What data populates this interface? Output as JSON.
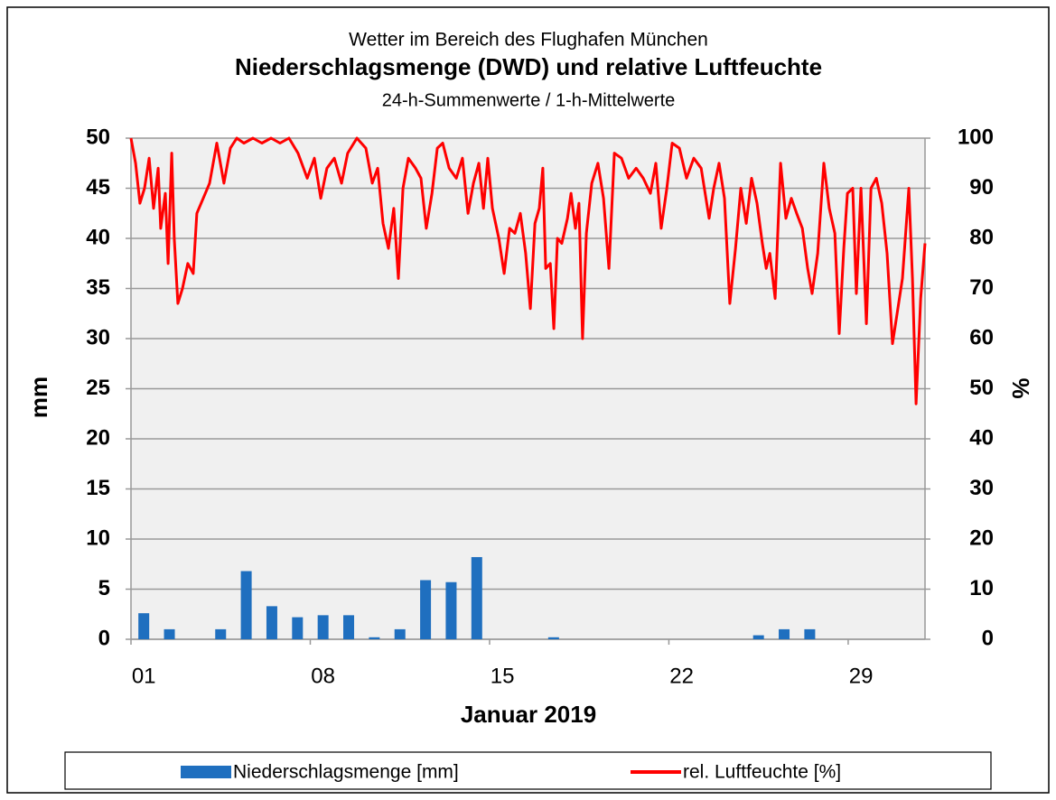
{
  "chart_data": {
    "type": "bar",
    "title": "Niederschlagsmenge (DWD) und relative  Luftfeuchte",
    "pretitle": "Wetter im Bereich des Flughafen München",
    "subtitle": "24-h-Summenwerte  / 1-h-Mittelwerte",
    "xlabel": "Januar 2019",
    "ylabel": "mm",
    "y2label": "%",
    "xlim": [
      1,
      32
    ],
    "xticks": [
      {
        "value": 1,
        "label": "01"
      },
      {
        "value": 8,
        "label": "08"
      },
      {
        "value": 15,
        "label": "15"
      },
      {
        "value": 22,
        "label": "22"
      },
      {
        "value": 29,
        "label": "29"
      }
    ],
    "ylim": [
      0,
      50
    ],
    "yticks": [
      0,
      5,
      10,
      15,
      20,
      25,
      30,
      35,
      40,
      45,
      50
    ],
    "y2lim": [
      0,
      100
    ],
    "y2ticks": [
      0,
      10,
      20,
      30,
      40,
      50,
      60,
      70,
      80,
      90,
      100
    ],
    "grid": true,
    "legend": "bottom",
    "series": [
      {
        "name": "Niederschlagsmenge [mm]",
        "type": "bar",
        "color": "#1f6fbf",
        "x": [
          1,
          2,
          3,
          4,
          5,
          6,
          7,
          8,
          9,
          10,
          11,
          12,
          13,
          14,
          15,
          16,
          17,
          18,
          19,
          20,
          21,
          22,
          23,
          24,
          25,
          26,
          27,
          28,
          29,
          30,
          31
        ],
        "values": [
          2.6,
          1.0,
          0,
          1.0,
          6.8,
          3.3,
          2.2,
          2.4,
          2.4,
          0.2,
          1.0,
          5.9,
          5.7,
          8.2,
          0,
          0,
          0.2,
          0,
          0,
          0,
          0,
          0,
          0,
          0,
          0.4,
          1.0,
          1.0,
          0,
          0,
          0,
          0
        ]
      },
      {
        "name": "rel. Luftfeuchte [%]",
        "type": "line",
        "axis": "y2",
        "color": "#ff0000",
        "x": [
          1.0,
          1.18,
          1.35,
          1.53,
          1.71,
          1.88,
          2.06,
          2.16,
          2.34,
          2.45,
          2.59,
          2.69,
          2.83,
          3.01,
          3.22,
          3.43,
          3.57,
          3.82,
          4.07,
          4.35,
          4.63,
          4.88,
          5.13,
          5.41,
          5.76,
          6.11,
          6.47,
          6.82,
          7.17,
          7.52,
          7.88,
          8.16,
          8.41,
          8.65,
          8.94,
          9.22,
          9.46,
          9.82,
          10.17,
          10.42,
          10.63,
          10.84,
          11.05,
          11.26,
          11.44,
          11.62,
          11.83,
          12.11,
          12.32,
          12.53,
          12.75,
          12.96,
          13.17,
          13.42,
          13.7,
          13.94,
          14.16,
          14.37,
          14.58,
          14.76,
          14.93,
          15.11,
          15.36,
          15.57,
          15.78,
          15.99,
          16.2,
          16.41,
          16.59,
          16.77,
          16.94,
          17.08,
          17.19,
          17.37,
          17.51,
          17.65,
          17.82,
          18.04,
          18.18,
          18.35,
          18.49,
          18.63,
          18.78,
          18.99,
          19.23,
          19.45,
          19.66,
          19.87,
          20.15,
          20.43,
          20.72,
          21.0,
          21.28,
          21.49,
          21.7,
          21.92,
          22.13,
          22.41,
          22.69,
          22.97,
          23.26,
          23.57,
          23.75,
          23.96,
          24.17,
          24.38,
          24.6,
          24.81,
          25.02,
          25.23,
          25.44,
          25.65,
          25.8,
          25.94,
          26.15,
          26.36,
          26.57,
          26.78,
          26.99,
          27.21,
          27.42,
          27.59,
          27.81,
          28.05,
          28.26,
          28.48,
          28.65,
          28.83,
          28.97,
          29.18,
          29.32,
          29.5,
          29.71,
          29.89,
          30.1,
          30.31,
          30.52,
          30.73,
          30.91,
          31.12,
          31.37,
          31.51,
          31.65,
          31.83,
          32.0
        ],
        "values": [
          100,
          95,
          87,
          90,
          96,
          86,
          94,
          82,
          89,
          75,
          97,
          80,
          67,
          70,
          75,
          73,
          85,
          88,
          91,
          99,
          91,
          98,
          100,
          99,
          100,
          99,
          100,
          99,
          100,
          97,
          92,
          96,
          88,
          94,
          96,
          91,
          97,
          100,
          98,
          91,
          94,
          83,
          78,
          86,
          72,
          90,
          96,
          94,
          92,
          82,
          89,
          98,
          99,
          94,
          92,
          96,
          85,
          91,
          95,
          86,
          96,
          86,
          80,
          73,
          82,
          81,
          85,
          77,
          66,
          83,
          86,
          94,
          74,
          75,
          62,
          80,
          79,
          84,
          89,
          82,
          87,
          60,
          81,
          91,
          95,
          88,
          74,
          97,
          96,
          92,
          94,
          92,
          89,
          95,
          82,
          90,
          99,
          98,
          92,
          96,
          94,
          84,
          90,
          95,
          88,
          67,
          78,
          90,
          83,
          92,
          87,
          79,
          74,
          77,
          68,
          95,
          84,
          88,
          85,
          82,
          74,
          69,
          77,
          95,
          86,
          81,
          61,
          78,
          89,
          90,
          69,
          90,
          63,
          90,
          92,
          87,
          77,
          59,
          65,
          72,
          90,
          72,
          47,
          68,
          79
        ]
      }
    ]
  }
}
